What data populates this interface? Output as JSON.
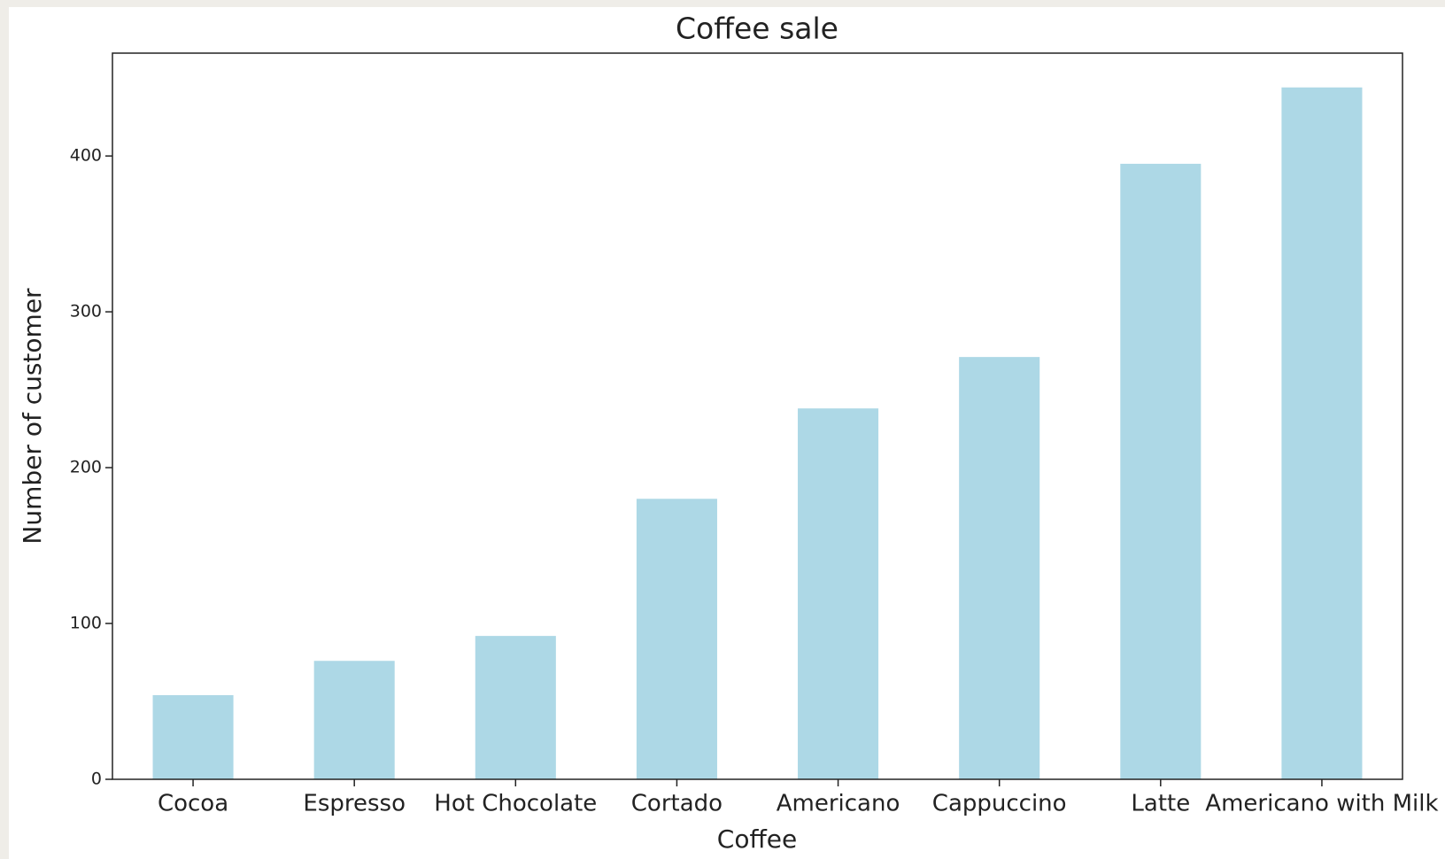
{
  "chart_data": {
    "type": "bar",
    "title": "Coffee sale",
    "x_label": "Coffee",
    "y_label": "Number of customer",
    "categories": [
      "Cocoa",
      "Espresso",
      "Hot Chocolate",
      "Cortado",
      "Americano",
      "Cappuccino",
      "Latte",
      "Americano with Milk"
    ],
    "values": [
      54,
      76,
      92,
      180,
      238,
      271,
      395,
      444
    ],
    "color": "#add8e6",
    "ylim": [
      0,
      466
    ],
    "yticks": [
      0,
      100,
      200,
      300,
      400
    ],
    "grid": false
  }
}
